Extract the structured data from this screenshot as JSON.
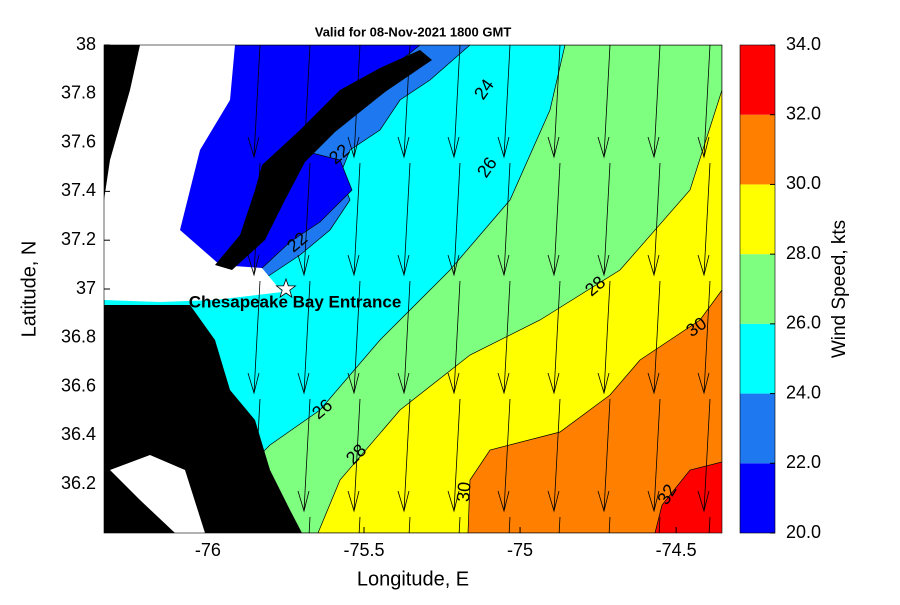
{
  "chart_data": {
    "type": "contour-map",
    "title": "Valid for 08-Nov-2021 1800 GMT",
    "x_label": "Longitude, E",
    "y_label": "Latitude, N",
    "xlim": [
      -76.333,
      -74.353
    ],
    "ylim": [
      36.0,
      38.0
    ],
    "xticks": [
      -76,
      -75.5,
      -75,
      -74.5
    ],
    "yticks": [
      36.2,
      36.4,
      36.6,
      36.8,
      37,
      37.2,
      37.4,
      37.6,
      37.8,
      38
    ],
    "colorbar": {
      "label": "Wind Speed, kts",
      "levels": [
        20,
        22,
        24,
        26,
        28,
        30,
        32,
        34
      ],
      "colors": [
        "#0000ff",
        "#1e78f0",
        "#00ffff",
        "#7fff7f",
        "#ffff00",
        "#ff8000",
        "#ff0000"
      ],
      "ticks": [
        {
          "value": 20,
          "label": "20.0"
        },
        {
          "value": 22,
          "label": "22.0"
        },
        {
          "value": 24,
          "label": "24.0"
        },
        {
          "value": 26,
          "label": "26.0"
        },
        {
          "value": 28,
          "label": "28.0"
        },
        {
          "value": 30,
          "label": "30.0"
        },
        {
          "value": 32,
          "label": "32.0"
        },
        {
          "value": 34,
          "label": "34.0"
        }
      ]
    },
    "contour_labels": [
      24,
      22,
      22,
      26,
      26,
      28,
      28,
      30,
      30,
      32
    ],
    "station": {
      "name": "Chesapeake Bay Entrance",
      "lon": -75.75,
      "lat": 37.0
    }
  }
}
